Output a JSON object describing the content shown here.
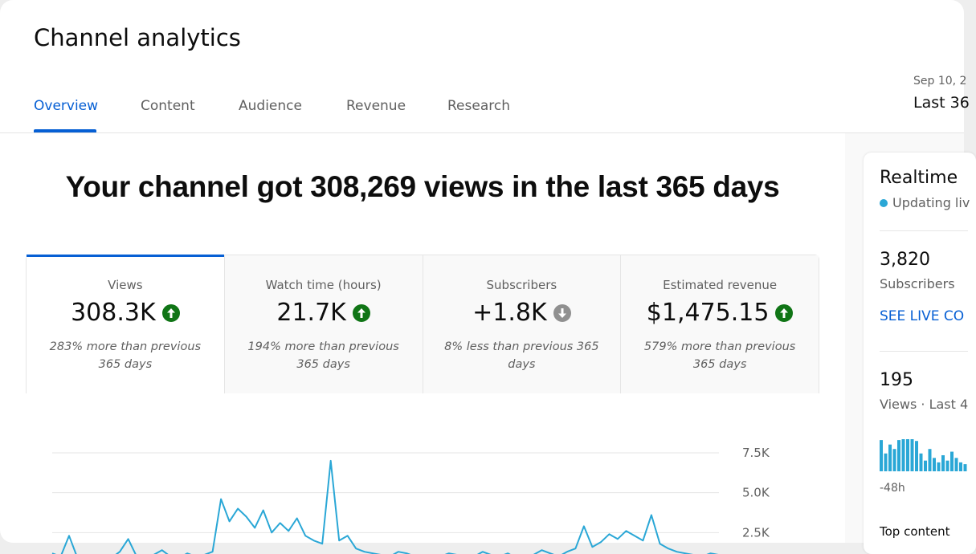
{
  "header": {
    "title": "Channel analytics",
    "tabs": [
      "Overview",
      "Content",
      "Audience",
      "Revenue",
      "Research"
    ],
    "date_range": "Sep 10, 2",
    "period": "Last 36"
  },
  "headline": "Your channel got 308,269 views in the last 365 days",
  "metrics": [
    {
      "label": "Views",
      "value": "308.3K",
      "trend": "up",
      "note": "283% more than previous 365 days"
    },
    {
      "label": "Watch time (hours)",
      "value": "21.7K",
      "trend": "up",
      "note": "194% more than previous 365 days"
    },
    {
      "label": "Subscribers",
      "value": "+1.8K",
      "trend": "down",
      "note": "8% less than previous 365 days"
    },
    {
      "label": "Estimated revenue",
      "value": "$1,475.15",
      "trend": "up",
      "note": "579% more than previous 365 days"
    }
  ],
  "chart_data": {
    "type": "line",
    "color": "#2aa7d6",
    "values": [
      1200,
      1000,
      2300,
      900,
      800,
      1100,
      1000,
      900,
      1300,
      2100,
      1000,
      900,
      1100,
      1400,
      1000,
      900,
      1200,
      1000,
      1100,
      1300,
      4600,
      3200,
      4000,
      3500,
      2800,
      3900,
      2500,
      3100,
      2600,
      3400,
      2300,
      2000,
      1800,
      7000,
      2000,
      2300,
      1500,
      1300,
      1200,
      1100,
      1000,
      1300,
      1200,
      1000,
      1100,
      900,
      1000,
      1200,
      1100,
      900,
      1000,
      1300,
      1100,
      1000,
      1200,
      900,
      1000,
      1100,
      1400,
      1200,
      1000,
      1300,
      1500,
      2900,
      1600,
      1900,
      2400,
      2100,
      2600,
      2300,
      2000,
      3600,
      1800,
      1500,
      1300,
      1200,
      1100,
      1000,
      1200,
      1100
    ],
    "ylim": [
      0,
      7500
    ],
    "yticks": [
      {
        "value": 2500,
        "label": "2.5K"
      },
      {
        "value": 5000,
        "label": "5.0K"
      },
      {
        "value": 7500,
        "label": "7.5K"
      }
    ],
    "grid": true
  },
  "realtime": {
    "title": "Realtime",
    "status": "Updating liv",
    "subscribers": "3,820",
    "subscribers_label": "Subscribers",
    "link": "SEE LIVE CO",
    "views": "195",
    "views_label": "Views · Last 4",
    "chart": {
      "type": "bar",
      "color": "#2aa7d6",
      "values": [
        35,
        20,
        30,
        25,
        35,
        36,
        36,
        36,
        34,
        20,
        12,
        25,
        15,
        10,
        18,
        12,
        22,
        15,
        10,
        8
      ]
    },
    "axis_label": "-48h",
    "top_content": "Top content"
  }
}
